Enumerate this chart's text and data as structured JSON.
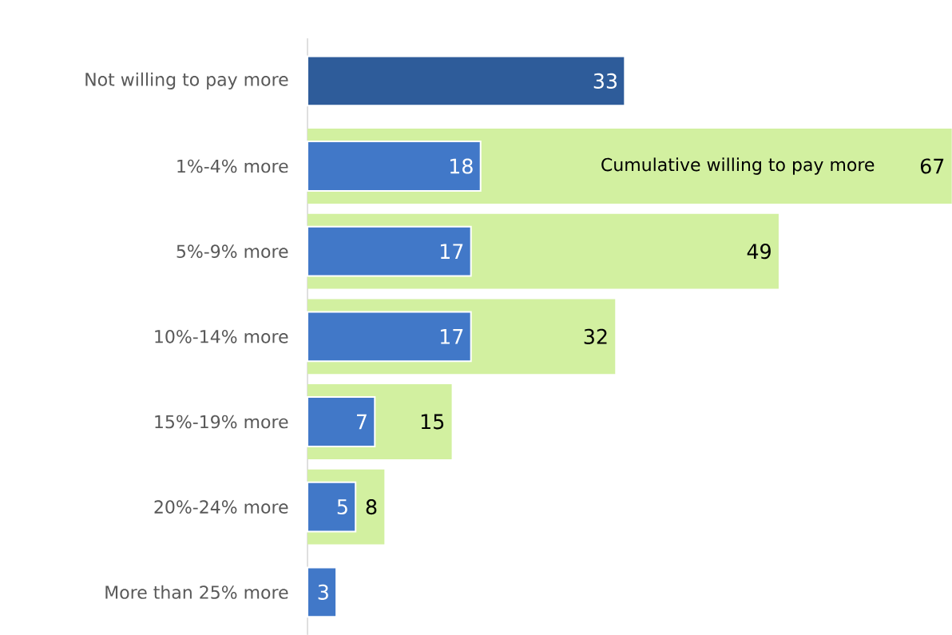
{
  "chart_data": {
    "type": "bar",
    "orientation": "horizontal",
    "tick_labels": "y",
    "data_labels": true,
    "categories": [
      "Not willing to pay more",
      "1%-4% more",
      "5%-9% more",
      "10%-14% more",
      "15%-19% more",
      "20%-24% more",
      "More than 25% more"
    ],
    "series": [
      {
        "name": "Cumulative willing to pay more",
        "color": "#d2f0a0",
        "values": [
          null,
          67,
          49,
          32,
          15,
          8,
          null
        ],
        "value_labels": [
          null,
          "67",
          "49",
          "32",
          "15",
          "8",
          null
        ]
      },
      {
        "color": "#4178c8",
        "colors": [
          "#2e5c9a",
          "#4178c8",
          "#4178c8",
          "#4178c8",
          "#4178c8",
          "#4178c8",
          "#4178c8"
        ],
        "values": [
          33,
          18,
          17,
          17,
          7,
          5,
          3
        ]
      }
    ]
  }
}
